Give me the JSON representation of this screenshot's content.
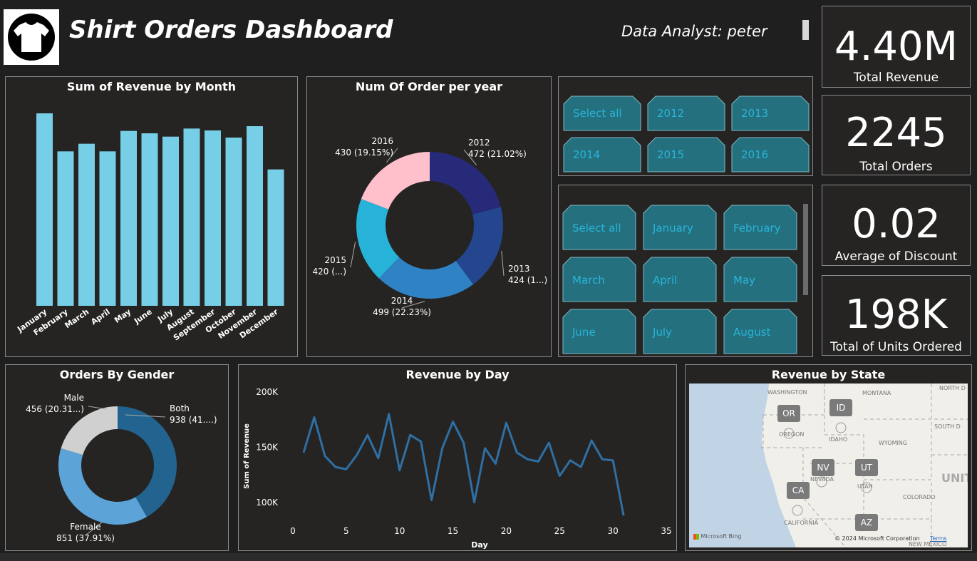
{
  "header": {
    "title": "Shirt Orders Dashboard",
    "analyst": "Data Analyst: peter",
    "logo_icon": "shirt-icon"
  },
  "kpis": [
    {
      "value": "4.40M",
      "label": "Total Revenue"
    },
    {
      "value": "2245",
      "label": "Total Orders"
    },
    {
      "value": "0.02",
      "label": "Average of Discount"
    },
    {
      "value": "198K",
      "label": "Total of Units Ordered"
    }
  ],
  "year_slicer": {
    "buttons": [
      "Select all",
      "2012",
      "2013",
      "2014",
      "2015",
      "2016"
    ]
  },
  "month_slicer": {
    "buttons": [
      "Select all",
      "January",
      "February",
      "March",
      "April",
      "May",
      "June",
      "July",
      "August"
    ]
  },
  "map": {
    "title": "Revenue by State",
    "states": [
      "OR",
      "ID",
      "NV",
      "UT",
      "CA",
      "AZ"
    ],
    "labels": [
      "WASHINGTON",
      "MONTANA",
      "NORTH D",
      "OREGON",
      "IDAHO",
      "WYOMING",
      "SOUTH D",
      "NEVADA",
      "UTAH",
      "UNITE",
      "COLORADO",
      "CALIFORNIA",
      "NEW MEXICO"
    ],
    "attribution": "© 2024 Microsoft Corporation",
    "terms": "Terms",
    "provider": "Microsoft Bing"
  },
  "colors": {
    "bar": "#76cfe6",
    "line": "#2f6fa3",
    "slicer_fill": "#25707e",
    "slicer_text": "#28b4d8",
    "year_2012": "#262a78",
    "year_2013": "#23468f",
    "year_2014": "#2f82c4",
    "year_2015": "#27b3d8",
    "year_2016": "#ffc0cb",
    "gender_both": "#22648f",
    "gender_female": "#5ca4d8",
    "gender_male": "#d0d0d0"
  },
  "chart_data": [
    {
      "type": "bar",
      "title": "Sum of Revenue by Month",
      "categories": [
        "January",
        "February",
        "March",
        "April",
        "May",
        "June",
        "July",
        "August",
        "September",
        "October",
        "November",
        "December"
      ],
      "values": [
        405000,
        325000,
        341000,
        325000,
        368000,
        363000,
        356000,
        373000,
        369000,
        354000,
        378000,
        287000
      ],
      "ylim": [
        0,
        450000
      ],
      "xlabel": "",
      "ylabel": ""
    },
    {
      "type": "pie",
      "title": "Num Of Order per year",
      "donut": true,
      "slices": [
        {
          "name": "2012",
          "value": 472,
          "label": "472 (21.02%)"
        },
        {
          "name": "2013",
          "value": 424,
          "label": "424 (1...)"
        },
        {
          "name": "2014",
          "value": 499,
          "label": "499 (22.23%)"
        },
        {
          "name": "2015",
          "value": 420,
          "label": "420 (...)"
        },
        {
          "name": "2016",
          "value": 430,
          "label": "430 (19.15%)"
        }
      ]
    },
    {
      "type": "pie",
      "title": "Orders By Gender",
      "donut": true,
      "slices": [
        {
          "name": "Both",
          "value": 938,
          "label": "938 (41....)"
        },
        {
          "name": "Female",
          "value": 851,
          "label": "851 (37.91%)"
        },
        {
          "name": "Male",
          "value": 456,
          "label": "456 (20.31...)"
        }
      ]
    },
    {
      "type": "line",
      "title": "Revenue by Day",
      "xlabel": "Day",
      "ylabel": "Sum of Revenue",
      "xlim": [
        0,
        35
      ],
      "ylim": [
        85000,
        205000
      ],
      "xticks": [
        0,
        5,
        10,
        15,
        20,
        25,
        30,
        35
      ],
      "yticks": [
        100000,
        150000,
        200000
      ],
      "ytick_labels": [
        "100K",
        "150K",
        "200K"
      ],
      "x": [
        1,
        2,
        3,
        4,
        5,
        6,
        7,
        8,
        9,
        10,
        11,
        12,
        13,
        14,
        15,
        16,
        17,
        18,
        19,
        20,
        21,
        22,
        23,
        24,
        25,
        26,
        27,
        28,
        29,
        30,
        31
      ],
      "values": [
        145000,
        177000,
        142000,
        132000,
        130000,
        143000,
        161000,
        140000,
        180000,
        129000,
        161000,
        155000,
        102000,
        149000,
        173000,
        154000,
        100000,
        149000,
        135000,
        172000,
        145000,
        139000,
        137000,
        154000,
        124000,
        138000,
        132000,
        156000,
        139000,
        138000,
        88000
      ]
    }
  ]
}
